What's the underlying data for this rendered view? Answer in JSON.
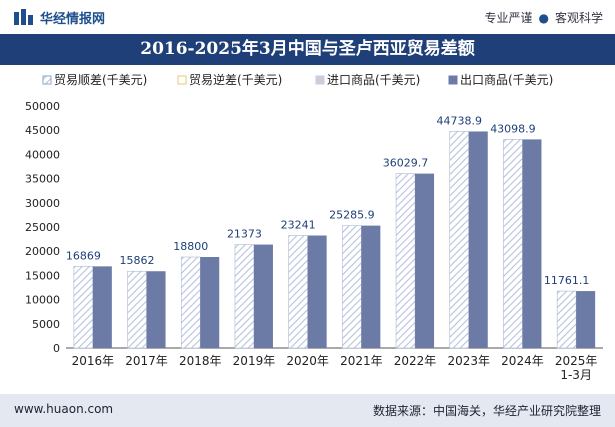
{
  "header": {
    "brand": "华经情报网",
    "tagline_left": "专业严谨",
    "tagline_right": "客观科学"
  },
  "title": "2016-2025年3月中国与圣卢西亚贸易差额",
  "footer": {
    "url": "www.huaon.com",
    "source": "数据来源：中国海关，华经产业研究院整理"
  },
  "colors": {
    "title_bg": "#1f3f78",
    "export_bar": "#6c7aa6",
    "import_bar_hatch": "#b7c3dc",
    "label_text": "#1f3f78"
  },
  "chart_data": {
    "type": "bar",
    "categories": [
      "2016年",
      "2017年",
      "2018年",
      "2019年",
      "2020年",
      "2021年",
      "2022年",
      "2023年",
      "2024年",
      "2025年 1-3月"
    ],
    "legend": [
      "贸易顺差(千美元)",
      "贸易逆差(千美元)",
      "进口商品(千美元)",
      "出口商品(千美元)"
    ],
    "legend_position": "top",
    "series": [
      {
        "name": "贸易顺差(千美元)",
        "values": [
          16869,
          15862,
          18800,
          21373,
          23241,
          25285.9,
          36029.7,
          44738.9,
          43098.9,
          11761.1
        ]
      },
      {
        "name": "出口商品(千美元)",
        "values": [
          16869,
          15862,
          18800,
          21373,
          23241,
          25285.9,
          36029.7,
          44738.9,
          43098.9,
          11761.1
        ]
      }
    ],
    "data_labels": [
      "16869",
      "15862",
      "18800",
      "21373",
      "23241",
      "25285.9",
      "36029.7",
      "44738.9",
      "43098.9",
      "11761.1"
    ],
    "yticks": [
      "0",
      "5000",
      "10000",
      "15000",
      "20000",
      "25000",
      "30000",
      "35000",
      "40000",
      "45000",
      "50000"
    ],
    "ylim": [
      0,
      50000
    ]
  }
}
